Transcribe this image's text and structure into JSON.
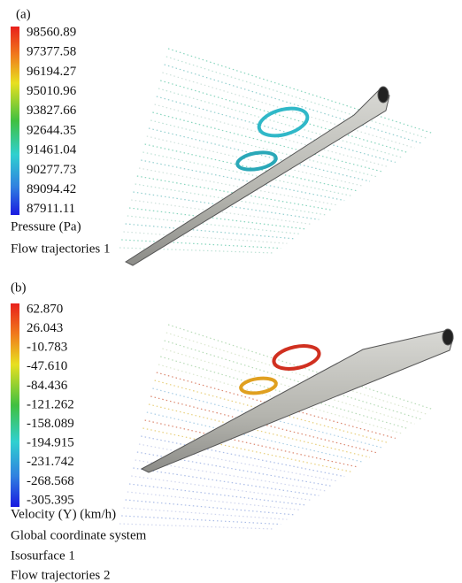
{
  "panels": [
    {
      "label": "(a)",
      "legend": [
        "98560.89",
        "97377.58",
        "96194.27",
        "95010.96",
        "93827.66",
        "92644.35",
        "91461.04",
        "90277.73",
        "89094.42",
        "87911.11"
      ],
      "captions": [
        "Pressure (Pa)",
        "Flow trajectories 1"
      ]
    },
    {
      "label": "(b)",
      "legend": [
        "62.870",
        "26.043",
        "-10.783",
        "-47.610",
        "-84.436",
        "-121.262",
        "-158.089",
        "-194.915",
        "-231.742",
        "-268.568",
        "-305.395"
      ],
      "captions": [
        "Velocity (Y) (km/h)",
        "Global coordinate system",
        "Isosurface 1",
        "Flow trajectories 2"
      ]
    }
  ]
}
